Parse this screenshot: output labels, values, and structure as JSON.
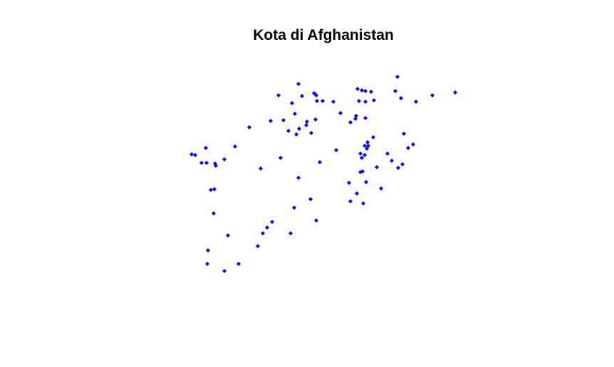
{
  "chart_data": {
    "type": "scatter",
    "title": "Kota di Afghanistan",
    "xlabel": "",
    "ylabel": "",
    "axes_visible": false,
    "grid": false,
    "point_color": "#0000ff",
    "series": [
      {
        "points": [
          [
            558,
            108
          ],
          [
            419,
            118
          ],
          [
            555,
            128
          ],
          [
            502,
            125
          ],
          [
            508,
            127
          ],
          [
            513,
            128
          ],
          [
            521,
            129
          ],
          [
            639,
            130
          ],
          [
            607,
            134
          ],
          [
            441,
            131
          ],
          [
            444,
            134
          ],
          [
            424,
            135
          ],
          [
            391,
            134
          ],
          [
            563,
            138
          ],
          [
            584,
            143
          ],
          [
            445,
            142
          ],
          [
            453,
            142
          ],
          [
            468,
            143
          ],
          [
            410,
            145
          ],
          [
            504,
            142
          ],
          [
            513,
            143
          ],
          [
            525,
            141
          ],
          [
            478,
            159
          ],
          [
            414,
            160
          ],
          [
            500,
            163
          ],
          [
            499,
            167
          ],
          [
            513,
            166
          ],
          [
            492,
            172
          ],
          [
            398,
            169
          ],
          [
            380,
            170
          ],
          [
            431,
            171
          ],
          [
            443,
            168
          ],
          [
            430,
            176
          ],
          [
            350,
            179
          ],
          [
            405,
            184
          ],
          [
            416,
            189
          ],
          [
            420,
            181
          ],
          [
            437,
            187
          ],
          [
            567,
            188
          ],
          [
            524,
            193
          ],
          [
            516,
            200
          ],
          [
            512,
            205
          ],
          [
            517,
            205
          ],
          [
            515,
            209
          ],
          [
            330,
            206
          ],
          [
            289,
            208
          ],
          [
            269,
            217
          ],
          [
            274,
            218
          ],
          [
            472,
            211
          ],
          [
            506,
            216
          ],
          [
            512,
            218
          ],
          [
            544,
            216
          ],
          [
            573,
            208
          ],
          [
            580,
            203
          ],
          [
            315,
            224
          ],
          [
            394,
            222
          ],
          [
            283,
            229
          ],
          [
            290,
            229
          ],
          [
            302,
            230
          ],
          [
            303,
            233
          ],
          [
            449,
            228
          ],
          [
            550,
            226
          ],
          [
            508,
            222
          ],
          [
            529,
            235
          ],
          [
            559,
            236
          ],
          [
            565,
            231
          ],
          [
            366,
            237
          ],
          [
            509,
            241
          ],
          [
            506,
            242
          ],
          [
            419,
            250
          ],
          [
            490,
            257
          ],
          [
            514,
            256
          ],
          [
            301,
            266
          ],
          [
            296,
            267
          ],
          [
            501,
            272
          ],
          [
            535,
            265
          ],
          [
            436,
            280
          ],
          [
            492,
            283
          ],
          [
            510,
            286
          ],
          [
            413,
            292
          ],
          [
            300,
            300
          ],
          [
            444,
            310
          ],
          [
            382,
            312
          ],
          [
            375,
            320
          ],
          [
            369,
            328
          ],
          [
            408,
            328
          ],
          [
            320,
            331
          ],
          [
            362,
            346
          ],
          [
            292,
            352
          ],
          [
            335,
            371
          ],
          [
            291,
            371
          ],
          [
            315,
            381
          ]
        ]
      }
    ]
  }
}
